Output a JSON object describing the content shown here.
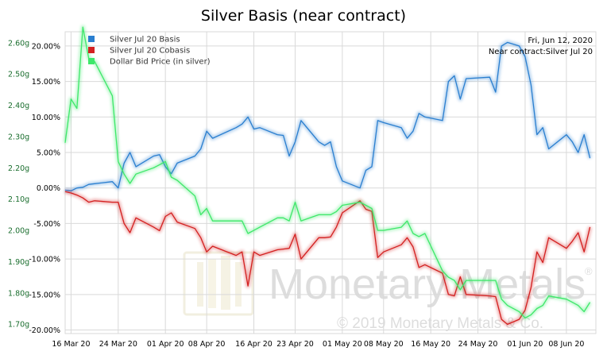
{
  "colors": {
    "basis": "#2a7fd0",
    "cobasis": "#d42020",
    "dollar": "#3ee86a",
    "grid": "#d9d9d9",
    "left_tick": "#1a6e2e",
    "watermark": "#dddddd"
  },
  "watermark": {
    "brand": "Monetary Metals",
    "registered": "®",
    "copyright": "© 2019 Monetary Metals & Co."
  },
  "chart_data": {
    "type": "line",
    "title": "Silver Basis (near contract)",
    "annotations": [
      "Fri, Jun 12, 2020",
      "Near contract:Silver Jul 20"
    ],
    "legend_position": "top-left",
    "grid": true,
    "x_ticks": [
      "16 Mar 20",
      "24 Mar 20",
      "01 Apr 20",
      "08 Apr 20",
      "16 Apr 20",
      "23 Apr 20",
      "01 May 20",
      "08 May 20",
      "16 May 20",
      "24 May 20",
      "01 Jun 20",
      "08 Jun 20"
    ],
    "x_tick_dates": [
      "2020-03-16",
      "2020-03-24",
      "2020-04-01",
      "2020-04-08",
      "2020-04-16",
      "2020-04-23",
      "2020-05-01",
      "2020-05-08",
      "2020-05-16",
      "2020-05-24",
      "2020-06-01",
      "2020-06-08"
    ],
    "x_range": [
      "2020-03-15",
      "2020-06-13"
    ],
    "y_right": {
      "label": "",
      "unit": "%",
      "range": [
        -20.5,
        22
      ],
      "ticks": [
        "20.00%",
        "15.00%",
        "10.00%",
        "5.00%",
        "0.00%",
        "-5.00%",
        "-10.00%",
        "-15.00%",
        "-20.00%"
      ],
      "tick_values": [
        20,
        15,
        10,
        5,
        0,
        -5,
        -10,
        -15,
        -20
      ]
    },
    "y_left": {
      "label": "",
      "unit": "g",
      "range": [
        1.67,
        2.635
      ],
      "ticks": [
        "2.60g",
        "2.50g",
        "2.40g",
        "2.30g",
        "2.20g",
        "2.10g",
        "2.00g",
        "1.90g",
        "1.80g",
        "1.70g"
      ],
      "tick_values": [
        2.6,
        2.5,
        2.4,
        2.3,
        2.2,
        2.1,
        2.0,
        1.9,
        1.8,
        1.7
      ]
    },
    "series": [
      {
        "name": "Silver Jul 20 Basis",
        "axis": "right",
        "color_key": "basis",
        "points": [
          [
            "2020-03-15",
            -0.3
          ],
          [
            "2020-03-16",
            -0.4
          ],
          [
            "2020-03-17",
            0.0
          ],
          [
            "2020-03-18",
            0.1
          ],
          [
            "2020-03-19",
            0.5
          ],
          [
            "2020-03-20",
            0.6
          ],
          [
            "2020-03-23",
            0.9
          ],
          [
            "2020-03-24",
            0.0
          ],
          [
            "2020-03-25",
            3.5
          ],
          [
            "2020-03-26",
            5.0
          ],
          [
            "2020-03-27",
            3.0
          ],
          [
            "2020-03-30",
            4.5
          ],
          [
            "2020-03-31",
            4.7
          ],
          [
            "2020-04-01",
            3.0
          ],
          [
            "2020-04-02",
            2.0
          ],
          [
            "2020-04-03",
            3.5
          ],
          [
            "2020-04-06",
            4.5
          ],
          [
            "2020-04-07",
            5.5
          ],
          [
            "2020-04-08",
            8.0
          ],
          [
            "2020-04-09",
            7.0
          ],
          [
            "2020-04-13",
            8.5
          ],
          [
            "2020-04-14",
            9.0
          ],
          [
            "2020-04-15",
            10.0
          ],
          [
            "2020-04-16",
            8.3
          ],
          [
            "2020-04-17",
            8.5
          ],
          [
            "2020-04-20",
            7.5
          ],
          [
            "2020-04-21",
            7.4
          ],
          [
            "2020-04-22",
            4.5
          ],
          [
            "2020-04-23",
            6.5
          ],
          [
            "2020-04-24",
            9.5
          ],
          [
            "2020-04-27",
            6.5
          ],
          [
            "2020-04-28",
            6.0
          ],
          [
            "2020-04-29",
            6.5
          ],
          [
            "2020-04-30",
            3.0
          ],
          [
            "2020-05-01",
            1.0
          ],
          [
            "2020-05-04",
            0.0
          ],
          [
            "2020-05-05",
            2.5
          ],
          [
            "2020-05-06",
            3.0
          ],
          [
            "2020-05-07",
            9.5
          ],
          [
            "2020-05-08",
            9.2
          ],
          [
            "2020-05-11",
            8.5
          ],
          [
            "2020-05-12",
            7.0
          ],
          [
            "2020-05-13",
            8.0
          ],
          [
            "2020-05-14",
            10.5
          ],
          [
            "2020-05-15",
            10.0
          ],
          [
            "2020-05-18",
            9.5
          ],
          [
            "2020-05-19",
            15.0
          ],
          [
            "2020-05-20",
            15.8
          ],
          [
            "2020-05-21",
            12.5
          ],
          [
            "2020-05-22",
            15.4
          ],
          [
            "2020-05-26",
            15.6
          ],
          [
            "2020-05-27",
            13.5
          ],
          [
            "2020-05-28",
            20.0
          ],
          [
            "2020-05-29",
            20.5
          ],
          [
            "2020-05-31",
            20.0
          ],
          [
            "2020-06-01",
            18.5
          ],
          [
            "2020-06-02",
            14.5
          ],
          [
            "2020-06-03",
            7.5
          ],
          [
            "2020-06-04",
            8.5
          ],
          [
            "2020-06-05",
            5.5
          ],
          [
            "2020-06-08",
            7.5
          ],
          [
            "2020-06-09",
            6.5
          ],
          [
            "2020-06-10",
            5.0
          ],
          [
            "2020-06-11",
            7.5
          ],
          [
            "2020-06-12",
            4.2
          ]
        ]
      },
      {
        "name": "Silver Jul 20 Cobasis",
        "axis": "right",
        "color_key": "cobasis",
        "points": [
          [
            "2020-03-15",
            -0.5
          ],
          [
            "2020-03-16",
            -0.7
          ],
          [
            "2020-03-17",
            -1.0
          ],
          [
            "2020-03-18",
            -1.4
          ],
          [
            "2020-03-19",
            -2.0
          ],
          [
            "2020-03-20",
            -1.8
          ],
          [
            "2020-03-23",
            -2.0
          ],
          [
            "2020-03-24",
            -2.0
          ],
          [
            "2020-03-25",
            -5.0
          ],
          [
            "2020-03-26",
            -6.3
          ],
          [
            "2020-03-27",
            -4.2
          ],
          [
            "2020-03-30",
            -5.5
          ],
          [
            "2020-03-31",
            -6.0
          ],
          [
            "2020-04-01",
            -4.0
          ],
          [
            "2020-04-02",
            -3.5
          ],
          [
            "2020-04-03",
            -4.8
          ],
          [
            "2020-04-06",
            -5.7
          ],
          [
            "2020-04-07",
            -7.0
          ],
          [
            "2020-04-08",
            -9.0
          ],
          [
            "2020-04-09",
            -8.2
          ],
          [
            "2020-04-13",
            -9.5
          ],
          [
            "2020-04-14",
            -9.0
          ],
          [
            "2020-04-15",
            -13.8
          ],
          [
            "2020-04-16",
            -9.0
          ],
          [
            "2020-04-17",
            -9.5
          ],
          [
            "2020-04-20",
            -8.7
          ],
          [
            "2020-04-21",
            -8.6
          ],
          [
            "2020-04-22",
            -8.5
          ],
          [
            "2020-04-23",
            -6.5
          ],
          [
            "2020-04-24",
            -10.0
          ],
          [
            "2020-04-27",
            -7.0
          ],
          [
            "2020-04-28",
            -7.0
          ],
          [
            "2020-04-29",
            -6.9
          ],
          [
            "2020-04-30",
            -5.5
          ],
          [
            "2020-05-01",
            -3.5
          ],
          [
            "2020-05-04",
            -1.8
          ],
          [
            "2020-05-05",
            -3.0
          ],
          [
            "2020-05-06",
            -3.3
          ],
          [
            "2020-05-07",
            -9.8
          ],
          [
            "2020-05-08",
            -9.0
          ],
          [
            "2020-05-11",
            -8.0
          ],
          [
            "2020-05-12",
            -7.0
          ],
          [
            "2020-05-13",
            -8.3
          ],
          [
            "2020-05-14",
            -11.2
          ],
          [
            "2020-05-15",
            -10.8
          ],
          [
            "2020-05-18",
            -12.0
          ],
          [
            "2020-05-19",
            -15.0
          ],
          [
            "2020-05-20",
            -15.2
          ],
          [
            "2020-05-21",
            -12.5
          ],
          [
            "2020-05-22",
            -15.0
          ],
          [
            "2020-05-26",
            -15.2
          ],
          [
            "2020-05-27",
            -15.3
          ],
          [
            "2020-05-28",
            -18.5
          ],
          [
            "2020-05-29",
            -19.2
          ],
          [
            "2020-05-31",
            -18.5
          ],
          [
            "2020-06-01",
            -17.2
          ],
          [
            "2020-06-02",
            -14.0
          ],
          [
            "2020-06-03",
            -9.0
          ],
          [
            "2020-06-04",
            -10.5
          ],
          [
            "2020-06-05",
            -7.0
          ],
          [
            "2020-06-08",
            -8.5
          ],
          [
            "2020-06-09",
            -7.5
          ],
          [
            "2020-06-10",
            -6.3
          ],
          [
            "2020-06-11",
            -9.0
          ],
          [
            "2020-06-12",
            -5.5
          ]
        ]
      },
      {
        "name": "Dollar Bid Price (in silver)",
        "axis": "left",
        "color_key": "dollar",
        "points": [
          [
            "2020-03-15",
            2.28
          ],
          [
            "2020-03-16",
            2.42
          ],
          [
            "2020-03-17",
            2.39
          ],
          [
            "2020-03-18",
            2.65
          ],
          [
            "2020-03-19",
            2.55
          ],
          [
            "2020-03-20",
            2.54
          ],
          [
            "2020-03-23",
            2.43
          ],
          [
            "2020-03-24",
            2.22
          ],
          [
            "2020-03-25",
            2.18
          ],
          [
            "2020-03-26",
            2.15
          ],
          [
            "2020-03-27",
            2.18
          ],
          [
            "2020-03-30",
            2.2
          ],
          [
            "2020-03-31",
            2.21
          ],
          [
            "2020-04-01",
            2.22
          ],
          [
            "2020-04-02",
            2.17
          ],
          [
            "2020-04-03",
            2.16
          ],
          [
            "2020-04-06",
            2.11
          ],
          [
            "2020-04-07",
            2.05
          ],
          [
            "2020-04-08",
            2.07
          ],
          [
            "2020-04-09",
            2.03
          ],
          [
            "2020-04-13",
            2.03
          ],
          [
            "2020-04-14",
            2.03
          ],
          [
            "2020-04-15",
            1.99
          ],
          [
            "2020-04-16",
            2.0
          ],
          [
            "2020-04-17",
            2.01
          ],
          [
            "2020-04-20",
            2.04
          ],
          [
            "2020-04-21",
            2.04
          ],
          [
            "2020-04-22",
            2.03
          ],
          [
            "2020-04-23",
            2.09
          ],
          [
            "2020-04-24",
            2.03
          ],
          [
            "2020-04-27",
            2.05
          ],
          [
            "2020-04-28",
            2.05
          ],
          [
            "2020-04-29",
            2.05
          ],
          [
            "2020-04-30",
            2.06
          ],
          [
            "2020-05-01",
            2.08
          ],
          [
            "2020-05-04",
            2.09
          ],
          [
            "2020-05-05",
            2.08
          ],
          [
            "2020-05-06",
            2.07
          ],
          [
            "2020-05-07",
            2.0
          ],
          [
            "2020-05-08",
            2.0
          ],
          [
            "2020-05-11",
            2.01
          ],
          [
            "2020-05-12",
            2.03
          ],
          [
            "2020-05-13",
            1.99
          ],
          [
            "2020-05-14",
            1.98
          ],
          [
            "2020-05-15",
            1.99
          ],
          [
            "2020-05-18",
            1.87
          ],
          [
            "2020-05-19",
            1.85
          ],
          [
            "2020-05-20",
            1.84
          ],
          [
            "2020-05-21",
            1.81
          ],
          [
            "2020-05-22",
            1.84
          ],
          [
            "2020-05-26",
            1.84
          ],
          [
            "2020-05-27",
            1.84
          ],
          [
            "2020-05-28",
            1.78
          ],
          [
            "2020-05-29",
            1.76
          ],
          [
            "2020-05-31",
            1.74
          ],
          [
            "2020-06-01",
            1.72
          ],
          [
            "2020-06-02",
            1.73
          ],
          [
            "2020-06-03",
            1.75
          ],
          [
            "2020-06-04",
            1.76
          ],
          [
            "2020-06-05",
            1.79
          ],
          [
            "2020-06-08",
            1.78
          ],
          [
            "2020-06-09",
            1.77
          ],
          [
            "2020-06-10",
            1.76
          ],
          [
            "2020-06-11",
            1.74
          ],
          [
            "2020-06-12",
            1.77
          ]
        ]
      }
    ]
  }
}
